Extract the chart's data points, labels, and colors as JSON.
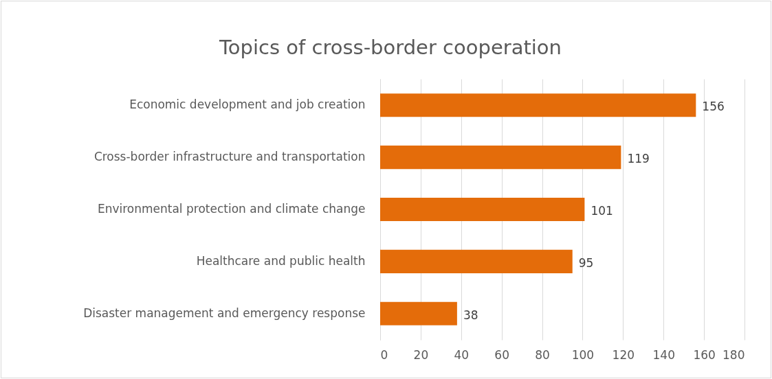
{
  "chart_data": {
    "type": "bar",
    "orientation": "horizontal",
    "title": "Topics of cross-border cooperation",
    "categories": [
      "Economic development and job creation",
      "Cross-border infrastructure and transportation",
      "Environmental protection and climate change",
      "Healthcare and public health",
      "Disaster management and emergency response"
    ],
    "values": [
      156,
      119,
      101,
      95,
      38
    ],
    "color": "#e46c0a",
    "xlim": [
      0,
      180
    ],
    "xticks": [
      0,
      20,
      40,
      60,
      80,
      100,
      120,
      140,
      160,
      180
    ],
    "grid": "x",
    "data_labels": true
  }
}
